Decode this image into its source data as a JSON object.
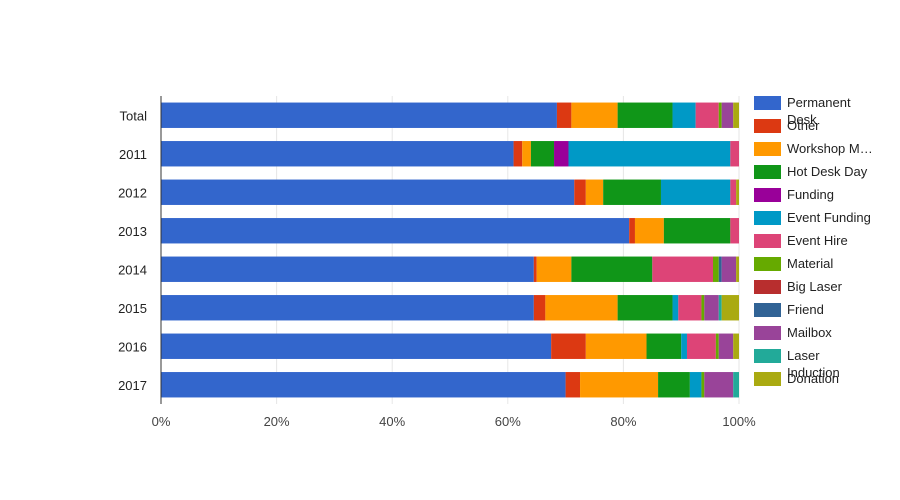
{
  "chart_data": {
    "type": "bar",
    "orientation": "horizontal",
    "stacking": "percent",
    "title": "",
    "xlabel": "",
    "ylabel": "",
    "xlim": [
      0,
      100
    ],
    "x_ticks": [
      "0%",
      "20%",
      "40%",
      "60%",
      "80%",
      "100%"
    ],
    "grid": true,
    "legend_position": "right",
    "categories": [
      "Total",
      "2011",
      "2012",
      "2013",
      "2014",
      "2015",
      "2016",
      "2017"
    ],
    "series": [
      {
        "name": "Permanent Desk",
        "color": "#3366cc",
        "values": [
          68.5,
          61.0,
          71.5,
          81.0,
          64.5,
          64.5,
          67.5,
          70.0
        ]
      },
      {
        "name": "Other",
        "color": "#dc3912",
        "values": [
          2.5,
          1.5,
          2.0,
          1.0,
          0.5,
          2.0,
          6.0,
          2.5
        ]
      },
      {
        "name": "Workshop M…",
        "color": "#ff9900",
        "values": [
          8.0,
          1.5,
          3.0,
          5.0,
          6.0,
          12.5,
          10.5,
          13.5
        ]
      },
      {
        "name": "Hot Desk Day",
        "color": "#109618",
        "values": [
          9.5,
          4.0,
          10.0,
          11.5,
          14.0,
          9.5,
          6.0,
          5.5
        ]
      },
      {
        "name": "Funding",
        "color": "#990099",
        "values": [
          0.0,
          2.5,
          0.0,
          0.0,
          0.0,
          0.0,
          0.0,
          0.0
        ]
      },
      {
        "name": "Event Funding",
        "color": "#0099c6",
        "values": [
          4.0,
          28.0,
          12.0,
          0.0,
          0.0,
          1.0,
          1.0,
          2.0
        ]
      },
      {
        "name": "Event Hire",
        "color": "#dd4477",
        "values": [
          4.0,
          1.5,
          1.0,
          1.5,
          10.5,
          4.0,
          5.0,
          0.0
        ]
      },
      {
        "name": "Material",
        "color": "#66aa00",
        "values": [
          0.5,
          0.0,
          0.0,
          0.0,
          1.0,
          0.5,
          0.5,
          0.5
        ]
      },
      {
        "name": "Big Laser",
        "color": "#b82e2e",
        "values": [
          0.0,
          0.0,
          0.0,
          0.0,
          0.0,
          0.0,
          0.0,
          0.0
        ]
      },
      {
        "name": "Friend",
        "color": "#316395",
        "values": [
          0.0,
          0.0,
          0.0,
          0.0,
          0.5,
          0.0,
          0.0,
          0.0
        ]
      },
      {
        "name": "Mailbox",
        "color": "#994499",
        "values": [
          2.0,
          0.0,
          0.0,
          0.0,
          2.5,
          2.5,
          2.5,
          5.0
        ]
      },
      {
        "name": "Laser Induction",
        "color": "#22aa99",
        "values": [
          0.0,
          0.0,
          0.0,
          0.0,
          0.0,
          0.5,
          0.0,
          1.0
        ]
      },
      {
        "name": "Donation",
        "color": "#aaaa11",
        "values": [
          1.0,
          0.0,
          0.5,
          0.0,
          0.5,
          3.0,
          1.0,
          0.0
        ]
      }
    ]
  }
}
